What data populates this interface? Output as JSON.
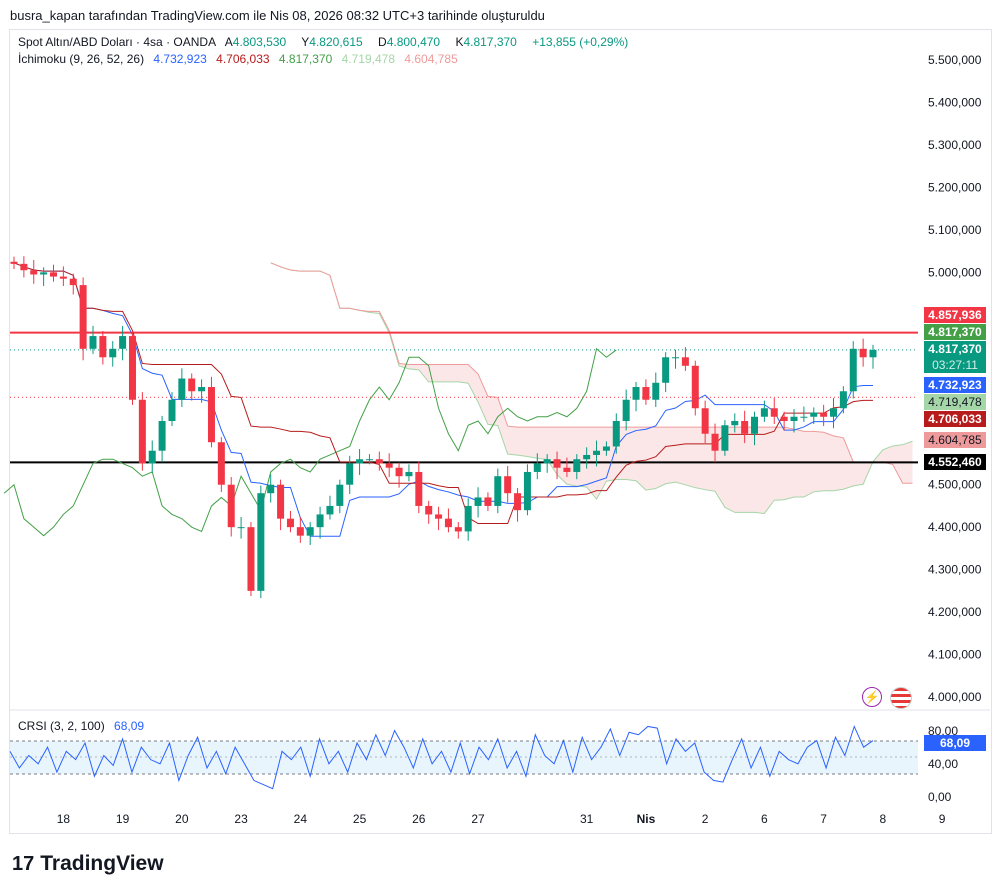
{
  "header": {
    "caption": "busra_kapan tarafından TradingView.com ile Nis 08, 2026 08:32 UTC+3 tarihinde oluşturuldu"
  },
  "legend": {
    "symbol": "Spot Altın/ABD Doları · 4sa · OANDA",
    "open_label": "A",
    "open": "4.803,530",
    "high_label": "Y",
    "high": "4.820,615",
    "low_label": "D",
    "low": "4.800,470",
    "close_label": "K",
    "close": "4.817,370",
    "change": "+13,855 (+0,29%)",
    "ichimoku_label": "İchimoku (9, 26, 52, 26)",
    "tenkan": "4.732,923",
    "kijun": "4.706,033",
    "chikou": "4.817,370",
    "spanA": "4.719,478",
    "spanB": "4.604,785"
  },
  "colors": {
    "up": "#089981",
    "down": "#f23645",
    "tenkan": "#2962ff",
    "kijun": "#b71c1c",
    "chikou": "#43a047",
    "spanA": "#a5d6a7",
    "spanB": "#ef9a9a"
  },
  "price_tags": {
    "line_high": "4.857,936",
    "chikou": "4.817,370",
    "last": "4.817,370",
    "countdown": "03:27:11",
    "tenkan": "4.732,923",
    "spanA": "4.719,478",
    "kijun": "4.706,033",
    "spanB": "4.604,785",
    "line_support": "4.552,460"
  },
  "crsi": {
    "label": "CRSI (3, 2, 100)",
    "value": "68,09",
    "ticks": [
      "80,00",
      "40,00",
      "0,00"
    ],
    "values": [
      55,
      35,
      50,
      40,
      60,
      30,
      55,
      45,
      65,
      25,
      50,
      38,
      70,
      30,
      60,
      45,
      40,
      65,
      20,
      50,
      72,
      35,
      55,
      28,
      60,
      40,
      20,
      15,
      10,
      55,
      45,
      60,
      25,
      70,
      40,
      55,
      30,
      65,
      45,
      75,
      50,
      80,
      60,
      35,
      70,
      40,
      55,
      30,
      65,
      28,
      60,
      45,
      70,
      35,
      55,
      25,
      75,
      50,
      40,
      68,
      30,
      72,
      45,
      60,
      82,
      50,
      78,
      75,
      85,
      83,
      40,
      70,
      55,
      65,
      30,
      20,
      18,
      45,
      70,
      35,
      60,
      25,
      55,
      45,
      40,
      60,
      68,
      35,
      72,
      50,
      85,
      60,
      68
    ]
  },
  "axis": {
    "prices": [
      "5.500,000",
      "5.400,000",
      "5.300,000",
      "5.200,000",
      "5.100,000",
      "5.000,000",
      "4.900,000",
      "4.800,000",
      "4.700,000",
      "4.600,000",
      "4.500,000",
      "4.400,000",
      "4.300,000",
      "4.200,000",
      "4.100,000",
      "4.000,000"
    ],
    "dates": [
      {
        "t": "18",
        "i": 5
      },
      {
        "t": "19",
        "i": 11
      },
      {
        "t": "20",
        "i": 17
      },
      {
        "t": "23",
        "i": 23
      },
      {
        "t": "24",
        "i": 29
      },
      {
        "t": "25",
        "i": 35
      },
      {
        "t": "26",
        "i": 41
      },
      {
        "t": "27",
        "i": 47
      },
      {
        "t": "31",
        "i": 58
      },
      {
        "t": "Nis",
        "i": 64
      },
      {
        "t": "2",
        "i": 70
      },
      {
        "t": "6",
        "i": 76
      },
      {
        "t": "7",
        "i": 82
      },
      {
        "t": "8",
        "i": 88
      },
      {
        "t": "9",
        "i": 94
      }
    ]
  },
  "chart_data": {
    "type": "candlestick",
    "ylim": [
      4000000,
      5500000
    ],
    "closes": [
      5020000,
      5005000,
      4995000,
      5000000,
      4990000,
      4985000,
      4970000,
      4820000,
      4850000,
      4800000,
      4820000,
      4850000,
      4700000,
      4550000,
      4580000,
      4650000,
      4700000,
      4750000,
      4720000,
      4730000,
      4600000,
      4500000,
      4400000,
      4400000,
      4250000,
      4480000,
      4500000,
      4420000,
      4400000,
      4380000,
      4400000,
      4430000,
      4450000,
      4500000,
      4550000,
      4560000,
      4560000,
      4550000,
      4540000,
      4520000,
      4530000,
      4450000,
      4430000,
      4420000,
      4400000,
      4390000,
      4450000,
      4470000,
      4450000,
      4520000,
      4480000,
      4440000,
      4530000,
      4550000,
      4560000,
      4540000,
      4530000,
      4560000,
      4570000,
      4580000,
      4590000,
      4650000,
      4700000,
      4730000,
      4700000,
      4740000,
      4800000,
      4800000,
      4780000,
      4680000,
      4620000,
      4580000,
      4640000,
      4650000,
      4620000,
      4660000,
      4680000,
      4660000,
      4650000,
      4660000,
      4660000,
      4670000,
      4660000,
      4680000,
      4720000,
      4820000,
      4800000,
      4817370
    ],
    "hlines": [
      {
        "price": 4857936,
        "color": "#f23645"
      },
      {
        "price": 4552460,
        "color": "#000000"
      }
    ]
  },
  "watermark": "TradingView"
}
